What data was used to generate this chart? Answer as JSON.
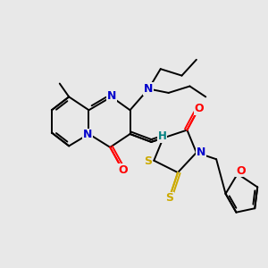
{
  "bg_color": "#e8e8e8",
  "atom_colors": {
    "C": "#000000",
    "N": "#0000cc",
    "O": "#ff0000",
    "S": "#ccaa00",
    "H": "#008080"
  },
  "bond_color": "#000000",
  "lw": 1.4,
  "fs": 9.0
}
